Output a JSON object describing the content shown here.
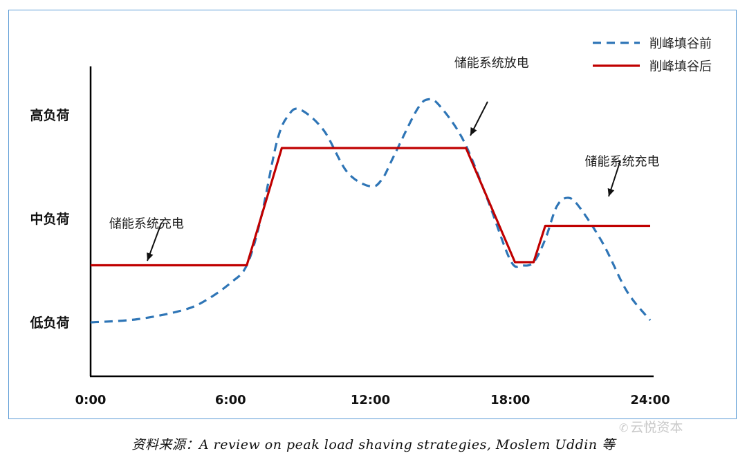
{
  "chart_data": {
    "type": "line",
    "xlabel": "",
    "ylabel": "",
    "x_ticks": [
      "0:00",
      "6:00",
      "12:00",
      "18:00",
      "24:00"
    ],
    "xlim": [
      0,
      24
    ],
    "y_ticks": [
      {
        "label": "低负荷",
        "value": 1
      },
      {
        "label": "中负荷",
        "value": 2
      },
      {
        "label": "高负荷",
        "value": 3
      }
    ],
    "ylim": [
      0.5,
      3.5
    ],
    "legend_position": "top-right",
    "series": [
      {
        "name": "削峰填谷前",
        "style": "dashed",
        "color": "#2e75b6",
        "x": [
          0,
          2,
          4,
          5,
          6,
          6.7,
          7.3,
          8,
          8.5,
          9,
          10,
          11,
          12,
          12.5,
          13,
          14,
          14.5,
          15,
          16,
          17,
          18,
          18.5,
          19,
          19.5,
          20,
          20.5,
          21,
          22,
          23,
          24
        ],
        "y": [
          1.0,
          1.03,
          1.12,
          1.22,
          1.38,
          1.55,
          2.0,
          2.75,
          3.0,
          3.05,
          2.85,
          2.45,
          2.31,
          2.38,
          2.6,
          3.05,
          3.15,
          3.08,
          2.75,
          2.2,
          1.6,
          1.55,
          1.58,
          1.8,
          2.12,
          2.2,
          2.1,
          1.75,
          1.3,
          1.02
        ]
      },
      {
        "name": "削峰填谷后",
        "style": "solid",
        "color": "#c00000",
        "x": [
          0,
          6.7,
          8.2,
          16.1,
          18.2,
          19.0,
          19.5,
          24
        ],
        "y": [
          1.55,
          1.55,
          2.68,
          2.68,
          1.58,
          1.58,
          1.93,
          1.93
        ]
      }
    ],
    "annotations": [
      {
        "text": "储能系统充电",
        "x": 2.4,
        "y": 1.95
      },
      {
        "text": "储能系统放电",
        "x": 17.2,
        "y": 3.5
      },
      {
        "text": "储能系统充电",
        "x": 22.8,
        "y": 2.55
      }
    ]
  },
  "source_text": "资料来源：A review on peak load shaving strategies, Moslem Uddin 等",
  "watermark": {
    "icon": "wechat-icon",
    "text": "云悦资本"
  }
}
